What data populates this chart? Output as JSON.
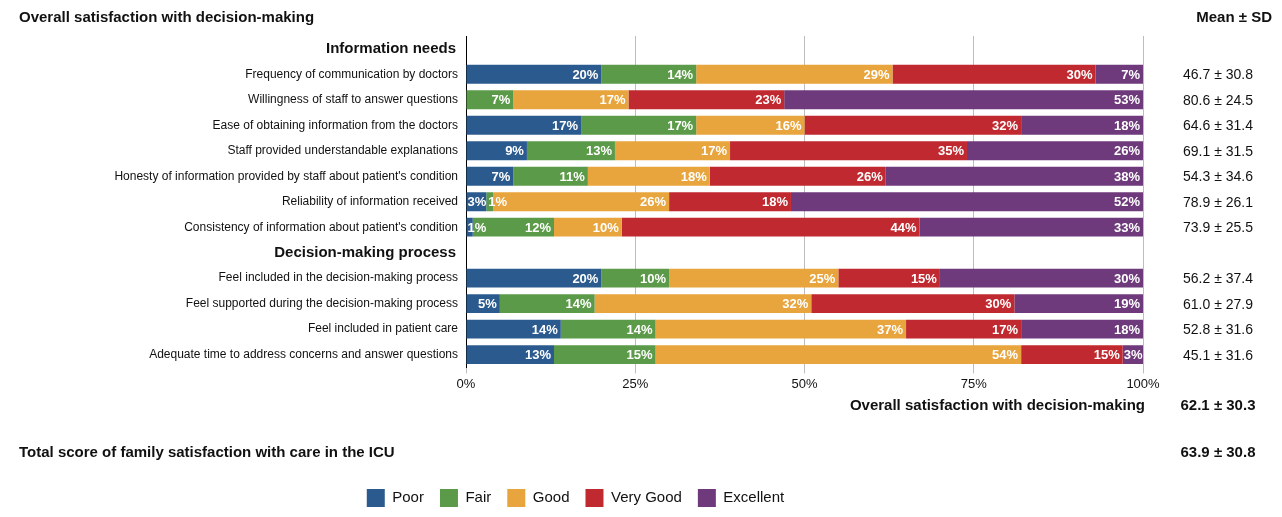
{
  "chart_data": {
    "type": "bar",
    "orientation": "horizontal",
    "stacked": true,
    "title": "Overall satisfaction with decision-making",
    "categories": [
      null,
      "Frequency of communication by doctors",
      "Willingness of staff to answer questions",
      "Ease of obtaining information from the doctors",
      "Staff provided understandable explanations",
      "Honesty of information provided by staff about patient's condition",
      "Reliability of information received",
      "Consistency of information about patient's condition",
      null,
      "Feel included in the decision-making process",
      "Feel supported during the decision-making process",
      "Feel included in patient care",
      "Adequate time to address concerns and answer questions"
    ],
    "series": [
      {
        "name": "Poor",
        "color": "#2b5b8e",
        "values": [
          null,
          20,
          null,
          17,
          9,
          7,
          3,
          1,
          null,
          20,
          5,
          14,
          13
        ],
        "value_labels": [
          null,
          "20%",
          null,
          "17%",
          "9%",
          "7%",
          "3%",
          "1%",
          null,
          "20%",
          "5%",
          "14%",
          "13%"
        ]
      },
      {
        "name": "Fair",
        "color": "#5b9a48",
        "values": [
          null,
          14,
          7,
          17,
          13,
          11,
          1,
          12,
          null,
          10,
          14,
          14,
          15
        ],
        "value_labels": [
          null,
          "14%",
          "7%",
          "17%",
          "13%",
          "11%",
          "1%",
          "12%",
          null,
          "10%",
          "14%",
          "14%",
          "15%"
        ]
      },
      {
        "name": "Good",
        "color": "#e8a43d",
        "values": [
          null,
          29,
          17,
          16,
          17,
          18,
          26,
          10,
          null,
          25,
          32,
          37,
          54
        ],
        "value_labels": [
          null,
          "29%",
          "17%",
          "16%",
          "17%",
          "18%",
          "26%",
          "10%",
          null,
          "25%",
          "32%",
          "37%",
          "54%"
        ]
      },
      {
        "name": "Very Good",
        "color": "#c0292f",
        "values": [
          null,
          30,
          23,
          32,
          35,
          26,
          18,
          44,
          null,
          15,
          30,
          17,
          15
        ],
        "value_labels": [
          null,
          "30%",
          "23%",
          "32%",
          "35%",
          "26%",
          "18%",
          "44%",
          null,
          "15%",
          "30%",
          "17%",
          "15%"
        ]
      },
      {
        "name": "Excellent",
        "color": "#6e3a7b",
        "values": [
          null,
          7,
          53,
          18,
          26,
          38,
          52,
          33,
          null,
          30,
          19,
          18,
          3
        ],
        "value_labels": [
          null,
          "7%",
          "53%",
          "18%",
          "26%",
          "38%",
          "52%",
          "33%",
          null,
          "30%",
          "19%",
          "18%",
          "3%"
        ]
      }
    ],
    "xlim": [
      0,
      100
    ],
    "xticks": [
      {
        "value": 0,
        "label": "0%"
      },
      {
        "value": 25,
        "label": "25%"
      },
      {
        "value": 50,
        "label": "50%"
      },
      {
        "value": 75,
        "label": "75%"
      },
      {
        "value": 100,
        "label": "100%"
      }
    ],
    "grid": "x",
    "legend": "bottom",
    "annotations": [
      "Information needs",
      "Decision-making process",
      "Mean ± SD",
      "46.7 ± 30.8",
      "80.6 ± 24.5",
      "64.6 ± 31.4",
      "69.1 ± 31.5",
      "54.3 ± 34.6",
      "78.9 ± 26.1",
      "73.9 ± 25.5",
      "56.2 ± 37.4",
      "61.0 ± 27.9",
      "52.8 ± 31.6",
      "45.1 ± 31.6",
      "Overall satisfaction with decision-making",
      "62.1 ± 30.3",
      "Total score of family satisfaction with care in the ICU",
      "63.9 ± 30.8"
    ]
  }
}
